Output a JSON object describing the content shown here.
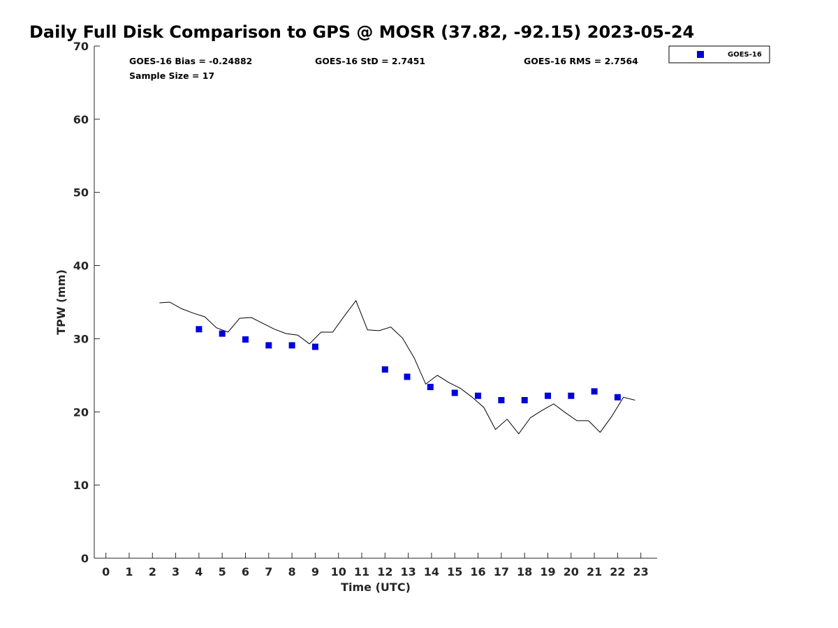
{
  "chart_data": {
    "type": "scatter",
    "title": "Daily Full Disk Comparison to GPS @ MOSR (37.82, -92.15) 2023-05-24",
    "xlabel": "Time (UTC)",
    "ylabel": "TPW (mm)",
    "xlim": [
      -0.5,
      23.7
    ],
    "ylim": [
      0,
      70
    ],
    "x_ticks": [
      0,
      1,
      2,
      3,
      4,
      5,
      6,
      7,
      8,
      9,
      10,
      11,
      12,
      13,
      14,
      15,
      16,
      17,
      18,
      19,
      20,
      21,
      22,
      23
    ],
    "y_ticks": [
      0,
      10,
      20,
      30,
      40,
      50,
      60,
      70
    ],
    "grid": false,
    "legend_position": "top-right",
    "stats": [
      {
        "text": "GOES-16 Bias = -0.24882"
      },
      {
        "text": "GOES-16 StD = 2.7451"
      },
      {
        "text": "GOES-16 RMS = 2.7564"
      },
      {
        "text": "Sample Size = 17"
      }
    ],
    "series": [
      {
        "name": "GOES-16",
        "kind": "scatter",
        "marker": "square",
        "color": "#0000dd",
        "x": [
          4.0,
          5.0,
          6.0,
          7.0,
          8.0,
          9.0,
          12.0,
          12.95,
          13.95,
          15.0,
          16.0,
          17.0,
          18.0,
          19.0,
          20.0,
          21.0,
          22.0
        ],
        "y": [
          31.3,
          30.7,
          29.9,
          29.1,
          29.1,
          28.9,
          25.8,
          24.8,
          23.4,
          22.6,
          22.2,
          21.6,
          21.6,
          22.2,
          22.2,
          22.8,
          22.0
        ]
      },
      {
        "kind": "line",
        "color": "#000000",
        "x": [
          2.3,
          2.75,
          3.25,
          3.75,
          4.25,
          4.75,
          5.25,
          5.75,
          6.25,
          6.75,
          7.25,
          7.75,
          8.25,
          8.75,
          9.25,
          9.75,
          10.25,
          10.75,
          11.25,
          11.75,
          12.25,
          12.75,
          13.25,
          13.75,
          14.25,
          14.75,
          15.25,
          15.75,
          16.25,
          16.75,
          17.25,
          17.75,
          18.25,
          18.75,
          19.25,
          19.75,
          20.25,
          20.75,
          21.25,
          21.75,
          22.25,
          22.75
        ],
        "y": [
          34.9,
          35.0,
          34.1,
          33.5,
          33.0,
          31.5,
          30.9,
          32.8,
          32.9,
          32.1,
          31.3,
          30.7,
          30.5,
          29.3,
          30.9,
          30.9,
          33.1,
          35.2,
          31.2,
          31.1,
          31.6,
          30.1,
          27.4,
          23.8,
          25.0,
          24.0,
          23.2,
          22.0,
          20.6,
          17.6,
          19.0,
          17.0,
          19.2,
          20.2,
          21.1,
          19.9,
          18.8,
          18.8,
          17.2,
          19.4,
          22.0,
          21.6
        ]
      }
    ]
  }
}
